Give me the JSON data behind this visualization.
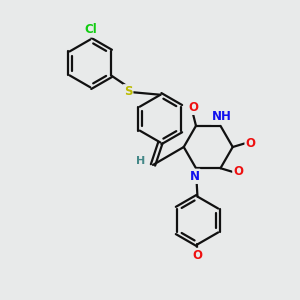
{
  "background_color": "#e8eaea",
  "atom_colors": {
    "C": "#000000",
    "N": "#1010ee",
    "O": "#ee1010",
    "S": "#bbbb00",
    "Cl": "#11cc11",
    "H": "#448888"
  },
  "bond_color": "#111111",
  "bond_width": 1.6,
  "font_size": 8.5,
  "fig_size": [
    3.0,
    3.0
  ],
  "dpi": 100
}
